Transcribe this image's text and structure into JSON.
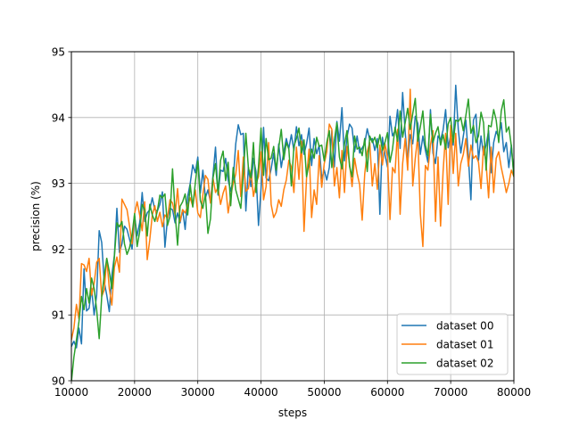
{
  "chart_data": {
    "type": "line",
    "xlabel": "steps",
    "ylabel": "precision (%)",
    "xlim": [
      10000,
      80000
    ],
    "ylim": [
      90,
      95
    ],
    "xticks": [
      10000,
      20000,
      30000,
      40000,
      50000,
      60000,
      70000,
      80000
    ],
    "yticks": [
      90,
      91,
      92,
      93,
      94,
      95
    ],
    "grid": true,
    "legend_position": "lower-right",
    "x": {
      "start": 10000,
      "step": 400,
      "count": 176
    },
    "series": [
      {
        "name": "dataset 00",
        "color": "#1f77b4",
        "values": [
          90.52,
          90.6,
          90.5,
          90.8,
          90.56,
          91.7,
          91.06,
          91.1,
          91.4,
          91.0,
          91.3,
          92.28,
          92.1,
          91.5,
          91.3,
          91.05,
          91.6,
          91.9,
          92.62,
          91.95,
          92.08,
          92.35,
          92.3,
          92.15,
          92.0,
          92.5,
          92.2,
          92.4,
          92.86,
          92.42,
          92.55,
          92.6,
          92.78,
          92.6,
          92.58,
          92.68,
          92.87,
          92.03,
          92.46,
          92.62,
          92.6,
          92.4,
          92.55,
          92.4,
          92.6,
          92.3,
          92.8,
          93.0,
          93.28,
          93.16,
          93.4,
          92.85,
          93.2,
          92.78,
          92.9,
          92.72,
          93.12,
          93.55,
          92.82,
          93.2,
          93.18,
          93.38,
          93.05,
          92.88,
          93.06,
          93.6,
          93.89,
          93.74,
          93.76,
          92.58,
          93.25,
          92.95,
          93.38,
          93.18,
          92.36,
          92.92,
          93.85,
          93.08,
          93.04,
          93.22,
          93.46,
          93.12,
          93.6,
          93.24,
          93.48,
          93.68,
          93.53,
          93.74,
          93.5,
          93.86,
          93.57,
          93.74,
          93.44,
          93.6,
          93.84,
          93.27,
          93.68,
          93.45,
          93.58,
          93.07,
          93.2,
          93.05,
          93.24,
          93.8,
          93.25,
          93.94,
          93.64,
          94.15,
          93.34,
          93.7,
          93.9,
          93.84,
          93.48,
          93.72,
          93.46,
          93.54,
          93.6,
          93.83,
          93.66,
          93.68,
          93.5,
          93.68,
          92.53,
          93.7,
          93.44,
          93.25,
          94.02,
          93.72,
          93.8,
          94.12,
          93.53,
          94.38,
          93.78,
          93.33,
          93.74,
          93.6,
          94.02,
          93.91,
          93.44,
          93.72,
          93.5,
          93.32,
          94.12,
          93.46,
          93.3,
          93.72,
          93.66,
          93.81,
          94.12,
          93.54,
          93.73,
          93.58,
          94.49,
          93.82,
          93.46,
          93.72,
          93.96,
          93.4,
          92.75,
          93.96,
          94.05,
          93.35,
          93.72,
          93.43,
          93.58,
          93.8,
          93.16,
          93.62,
          93.79,
          93.7,
          93.92,
          93.48,
          93.62,
          93.24,
          93.58,
          93.1
        ]
      },
      {
        "name": "dataset 01",
        "color": "#ff7f0e",
        "values": [
          90.62,
          90.8,
          91.16,
          90.94,
          91.78,
          91.76,
          91.66,
          91.86,
          91.3,
          91.48,
          91.8,
          91.86,
          91.28,
          91.38,
          91.86,
          91.4,
          91.15,
          91.72,
          91.88,
          91.65,
          92.76,
          92.68,
          92.6,
          92.35,
          92.08,
          92.54,
          92.72,
          92.52,
          92.28,
          92.72,
          91.84,
          92.14,
          92.52,
          92.66,
          92.42,
          92.56,
          92.34,
          92.52,
          92.47,
          92.75,
          92.7,
          92.52,
          92.92,
          92.42,
          92.6,
          92.55,
          92.66,
          92.78,
          92.65,
          92.9,
          92.55,
          92.48,
          92.82,
          93.12,
          93.06,
          92.7,
          93.08,
          92.86,
          92.94,
          92.68,
          92.85,
          92.96,
          92.55,
          92.8,
          93.0,
          93.14,
          93.5,
          92.8,
          93.4,
          92.88,
          92.92,
          93.2,
          92.8,
          93.0,
          93.1,
          93.48,
          92.75,
          92.95,
          93.62,
          92.68,
          92.48,
          92.56,
          92.75,
          92.65,
          92.9,
          93.05,
          93.35,
          93.25,
          92.86,
          93.55,
          93.06,
          93.64,
          92.27,
          93.08,
          93.52,
          92.48,
          92.9,
          92.68,
          93.42,
          92.94,
          93.3,
          93.48,
          93.9,
          93.82,
          92.96,
          93.24,
          92.78,
          93.5,
          92.86,
          93.56,
          93.3,
          92.95,
          93.38,
          93.15,
          92.98,
          92.44,
          93.14,
          93.48,
          93.62,
          92.96,
          93.3,
          92.91,
          93.58,
          93.28,
          93.6,
          93.4,
          92.45,
          93.24,
          93.16,
          93.82,
          92.53,
          93.3,
          93.68,
          93.2,
          94.43,
          92.96,
          93.38,
          93.72,
          92.54,
          92.04,
          93.27,
          93.2,
          93.58,
          93.8,
          92.42,
          93.4,
          92.35,
          93.18,
          93.76,
          92.68,
          93.88,
          93.15,
          93.76,
          92.96,
          93.3,
          93.44,
          93.68,
          93.26,
          93.58,
          93.38,
          93.42,
          93.32,
          92.92,
          93.56,
          93.3,
          92.78,
          93.55,
          92.86,
          93.38,
          93.48,
          93.24,
          93.06,
          92.86,
          93.0,
          93.2,
          93.1
        ]
      },
      {
        "name": "dataset 02",
        "color": "#2ca02c",
        "values": [
          89.98,
          90.36,
          90.62,
          90.9,
          91.28,
          91.08,
          91.4,
          91.18,
          91.56,
          91.4,
          91.08,
          90.64,
          91.28,
          91.6,
          91.86,
          91.66,
          91.4,
          91.88,
          92.4,
          92.34,
          92.42,
          92.08,
          91.92,
          92.02,
          92.22,
          92.54,
          92.04,
          92.26,
          92.68,
          92.6,
          92.2,
          92.68,
          92.52,
          92.42,
          92.58,
          92.82,
          92.78,
          92.84,
          92.36,
          92.5,
          93.22,
          92.56,
          92.06,
          92.65,
          92.72,
          92.84,
          92.52,
          92.98,
          92.64,
          93.0,
          93.34,
          92.74,
          92.62,
          92.84,
          92.24,
          92.46,
          93.08,
          93.3,
          92.84,
          93.35,
          93.49,
          93.04,
          93.32,
          92.66,
          93.24,
          92.9,
          92.76,
          92.62,
          93.14,
          93.76,
          93.24,
          93.08,
          93.62,
          92.86,
          93.25,
          93.84,
          93.12,
          93.68,
          93.36,
          93.38,
          93.56,
          93.2,
          93.54,
          93.82,
          93.36,
          93.62,
          93.52,
          92.96,
          93.56,
          93.68,
          93.84,
          93.46,
          93.66,
          93.1,
          93.3,
          93.52,
          93.38,
          93.7,
          93.56,
          93.58,
          93.34,
          93.62,
          93.8,
          93.24,
          93.66,
          93.92,
          93.4,
          93.22,
          93.6,
          93.8,
          93.26,
          93.1,
          93.72,
          93.52,
          93.55,
          93.42,
          93.68,
          93.18,
          93.72,
          93.62,
          93.7,
          93.54,
          93.74,
          93.5,
          93.62,
          93.77,
          93.32,
          93.52,
          93.85,
          93.64,
          94.1,
          93.7,
          93.92,
          94.14,
          93.82,
          94.06,
          94.29,
          93.64,
          93.86,
          94.1,
          93.58,
          93.42,
          94.05,
          93.62,
          93.76,
          93.86,
          93.58,
          93.74,
          93.52,
          93.9,
          94.0,
          93.62,
          93.96,
          93.94,
          94.0,
          93.8,
          94.03,
          94.28,
          93.76,
          93.88,
          93.62,
          93.72,
          94.08,
          93.92,
          93.2,
          93.88,
          93.86,
          94.12,
          93.96,
          93.62,
          94.1,
          94.27,
          93.78,
          93.86,
          93.56,
          93.1
        ]
      }
    ]
  }
}
